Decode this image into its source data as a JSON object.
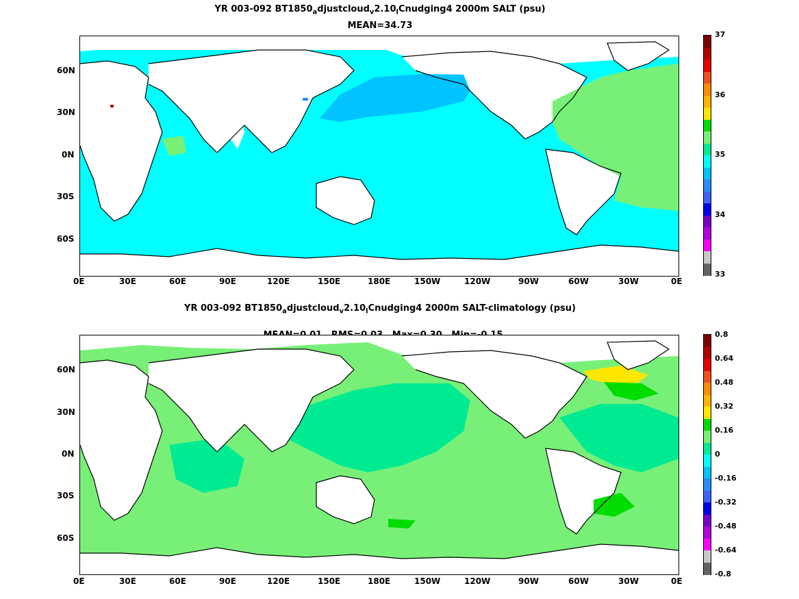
{
  "top_panel": {
    "title_line1_part1": "YR 003-092 BT1850",
    "title_sub1": "a",
    "title_line1_part2": "djustcloud",
    "title_sub2": "v",
    "title_line1_part3": "2.10",
    "title_sub3": "l",
    "title_line1_part4": "Cnudging4 2000m SALT (psu)",
    "title_line2": "MEAN=34.73",
    "colorbar": {
      "labels": [
        "37",
        "36",
        "35",
        "34",
        "33"
      ],
      "colors": [
        "#7f0000",
        "#b30000",
        "#e60000",
        "#f0501e",
        "#ff8c00",
        "#ffb400",
        "#ffe600",
        "#00dc00",
        "#78f078",
        "#00eb91",
        "#00ffff",
        "#00c3ff",
        "#288cff",
        "#3c64ff",
        "#0000e6",
        "#7800c8",
        "#b400dc",
        "#ff00ff",
        "#c8c8c8",
        "#646464"
      ]
    },
    "fill_colors": {
      "ocean_main": "#00ffff",
      "pacific_north": "#00c3ff",
      "atlantic": "#78f078",
      "nw_pacific": "#00c3ff",
      "med_red": "#b30000"
    }
  },
  "bottom_panel": {
    "title_line1_part1": "YR 003-092 BT1850",
    "title_sub1": "a",
    "title_line1_part2": "djustcloud",
    "title_sub2": "v",
    "title_line1_part3": "2.10",
    "title_sub3": "l",
    "title_line1_part4": "Cnudging4 2000m SALT-climatology (psu)",
    "title_line2": "MEAN=0.01   RMS=0.03   Max=0.30   Min=-0.15",
    "colorbar": {
      "labels": [
        "0.8",
        "0.64",
        "0.48",
        "0.32",
        "0.16",
        "0",
        "-0.16",
        "-0.32",
        "-0.48",
        "-0.64",
        "-0.8"
      ],
      "colors": [
        "#7f0000",
        "#b30000",
        "#e60000",
        "#f0501e",
        "#ff8c00",
        "#ffb400",
        "#ffe600",
        "#00dc00",
        "#78f078",
        "#00eb91",
        "#00ffff",
        "#00c3ff",
        "#288cff",
        "#3c64ff",
        "#0000e6",
        "#7800c8",
        "#b400dc",
        "#ff00ff",
        "#c8c8c8",
        "#646464"
      ]
    },
    "fill_colors": {
      "ocean_main": "#78f078",
      "alt": "#00eb91",
      "yellow": "#ffe600",
      "green": "#00dc00"
    }
  },
  "axes": {
    "lon_labels": [
      "0E",
      "30E",
      "60E",
      "90E",
      "120E",
      "150E",
      "180E",
      "150W",
      "120W",
      "90W",
      "60W",
      "30W",
      "0E"
    ],
    "lat_labels": [
      "60N",
      "30N",
      "0N",
      "30S",
      "60S"
    ]
  }
}
